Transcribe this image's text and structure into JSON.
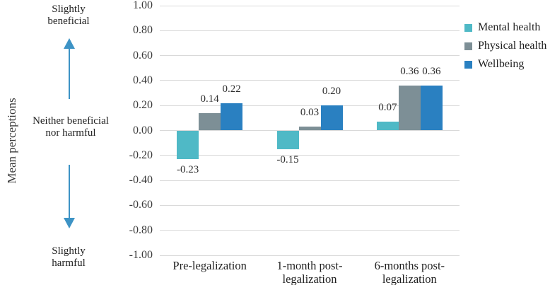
{
  "chart_data": {
    "type": "bar",
    "title": "",
    "xlabel": "",
    "ylabel": "Mean perceptions",
    "categories": [
      "Pre-legalization",
      "1-month post-legalization",
      "6-months post-legalization"
    ],
    "series": [
      {
        "name": "Mental health",
        "color": "#4fb9c6",
        "values": [
          -0.23,
          -0.15,
          0.07
        ]
      },
      {
        "name": "Physical health",
        "color": "#7d8f96",
        "values": [
          0.14,
          0.03,
          0.36
        ]
      },
      {
        "name": "Wellbeing",
        "color": "#2a80c1",
        "values": [
          0.22,
          0.2,
          0.36
        ]
      }
    ],
    "ylim": [
      -1.0,
      1.0
    ],
    "ytick_labels": [
      "1.00",
      "0.80",
      "0.60",
      "0.40",
      "0.20",
      "0.00",
      "-0.20",
      "-0.40",
      "-0.60",
      "-0.80",
      "-1.00"
    ],
    "grid": true,
    "grid_color": "#d9d9d9",
    "legend_position": "right",
    "data_labels": true
  },
  "annotations": {
    "axis_top": "Slightly beneficial",
    "axis_middle": "Neither beneficial nor harmful",
    "axis_bottom": "Slightly harmful",
    "arrow_color": "#3d93c5"
  }
}
